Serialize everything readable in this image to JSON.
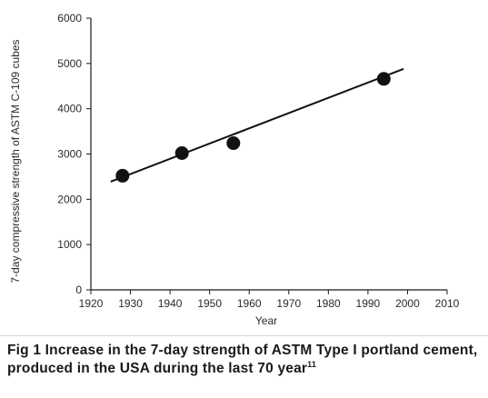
{
  "chart_data": {
    "type": "line",
    "title": "",
    "xlabel": "Year",
    "ylabel": "7-day compressive strength of ASTM C-109 cubes",
    "xlim": [
      1920,
      2010
    ],
    "ylim": [
      0,
      6000
    ],
    "x_ticks": [
      1920,
      1930,
      1940,
      1950,
      1960,
      1970,
      1980,
      1990,
      2000,
      2010
    ],
    "y_ticks": [
      0,
      1000,
      2000,
      3000,
      4000,
      5000,
      6000
    ],
    "grid": false,
    "legend": "none",
    "trend_line": {
      "x": [
        1925,
        1999
      ],
      "y": [
        2390,
        4880
      ]
    },
    "series": [
      {
        "x": [
          1928,
          1943,
          1956,
          1994
        ],
        "y": [
          2520,
          3020,
          3240,
          4660
        ]
      }
    ]
  },
  "caption": {
    "text": "Fig 1 Increase in the 7-day strength of ASTM Type I portland cement, produced in the USA during the last 70 year",
    "superscript": "11"
  }
}
